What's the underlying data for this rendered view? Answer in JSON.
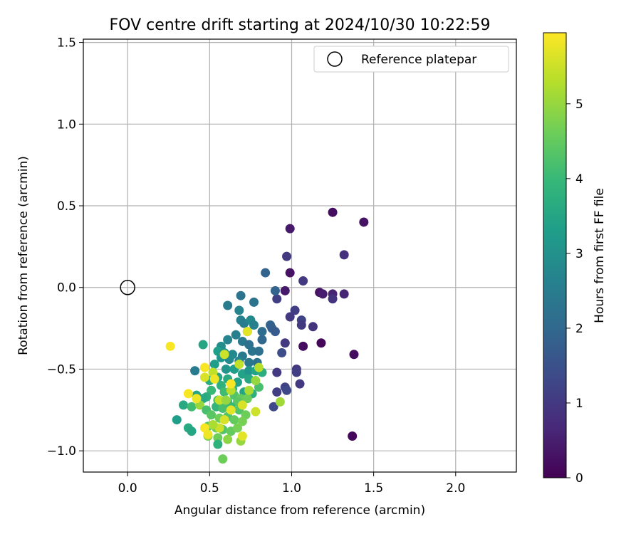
{
  "chart_data": {
    "type": "scatter",
    "title": "FOV centre drift starting at 2024/10/30 10:22:59",
    "xlabel": "Angular distance from reference (arcmin)",
    "ylabel": "Rotation from reference (arcmin)",
    "xlim": [
      -0.27,
      2.37
    ],
    "ylim": [
      -1.13,
      1.52
    ],
    "xticks": [
      0.0,
      0.5,
      1.0,
      1.5,
      2.0
    ],
    "xtick_labels": [
      "0.0",
      "0.5",
      "1.0",
      "1.5",
      "2.0"
    ],
    "yticks": [
      -1.0,
      -0.5,
      0.0,
      0.5,
      1.0,
      1.5
    ],
    "ytick_labels": [
      "−1.0",
      "−0.5",
      "0.0",
      "0.5",
      "1.0",
      "1.5"
    ],
    "grid": true,
    "legend": {
      "placement": "top-right",
      "entries": [
        "Reference platepar"
      ]
    },
    "reference_point": {
      "name": "Reference platepar",
      "x": 0.0,
      "y": 0.0
    },
    "colorbar": {
      "label": "Hours from first FF file",
      "range": [
        0,
        5.95
      ],
      "ticks": [
        0,
        1,
        2,
        3,
        4,
        5
      ],
      "tick_labels": [
        "0",
        "1",
        "2",
        "3",
        "4",
        "5"
      ],
      "colormap": "viridis"
    },
    "series": [
      {
        "points": [
          [
            1.25,
            0.46,
            0.2
          ],
          [
            1.44,
            0.4,
            0.3
          ],
          [
            0.99,
            0.36,
            0.4
          ],
          [
            1.32,
            0.2,
            0.8
          ],
          [
            0.97,
            0.19,
            1.0
          ],
          [
            0.99,
            0.09,
            0.3
          ],
          [
            1.07,
            0.04,
            1.0
          ],
          [
            0.96,
            -0.02,
            0.4
          ],
          [
            1.17,
            -0.03,
            0.3
          ],
          [
            1.19,
            -0.04,
            0.5
          ],
          [
            1.25,
            -0.04,
            0.6
          ],
          [
            1.32,
            -0.04,
            0.6
          ],
          [
            1.25,
            -0.07,
            0.9
          ],
          [
            0.91,
            -0.07,
            1.1
          ],
          [
            1.02,
            -0.14,
            1.1
          ],
          [
            0.99,
            -0.18,
            1.0
          ],
          [
            1.06,
            -0.2,
            1.2
          ],
          [
            1.06,
            -0.23,
            1.0
          ],
          [
            1.13,
            -0.24,
            0.9
          ],
          [
            1.18,
            -0.34,
            0.1
          ],
          [
            1.07,
            -0.36,
            0.2
          ],
          [
            1.38,
            -0.41,
            0.2
          ],
          [
            0.96,
            -0.34,
            1.0
          ],
          [
            0.94,
            -0.4,
            1.4
          ],
          [
            1.03,
            -0.5,
            1.0
          ],
          [
            1.03,
            -0.52,
            1.1
          ],
          [
            0.91,
            -0.52,
            1.0
          ],
          [
            1.05,
            -0.59,
            1.0
          ],
          [
            0.96,
            -0.61,
            1.2
          ],
          [
            0.97,
            -0.63,
            1.3
          ],
          [
            0.91,
            -0.64,
            1.1
          ],
          [
            0.89,
            -0.73,
            1.3
          ],
          [
            1.37,
            -0.91,
            0.1
          ],
          [
            0.9,
            -0.02,
            1.9
          ],
          [
            0.84,
            0.09,
            1.9
          ],
          [
            0.77,
            -0.09,
            2.3
          ],
          [
            0.69,
            -0.05,
            2.3
          ],
          [
            0.61,
            -0.11,
            2.5
          ],
          [
            0.68,
            -0.14,
            2.7
          ],
          [
            0.69,
            -0.2,
            2.6
          ],
          [
            0.71,
            -0.22,
            2.5
          ],
          [
            0.75,
            -0.2,
            2.8
          ],
          [
            0.77,
            -0.23,
            2.6
          ],
          [
            0.87,
            -0.23,
            1.9
          ],
          [
            0.88,
            -0.25,
            1.8
          ],
          [
            0.9,
            -0.27,
            1.7
          ],
          [
            0.82,
            -0.27,
            2.1
          ],
          [
            0.73,
            -0.27,
            2.4
          ],
          [
            0.66,
            -0.29,
            2.6
          ],
          [
            0.61,
            -0.32,
            2.7
          ],
          [
            0.7,
            -0.33,
            2.4
          ],
          [
            0.74,
            -0.35,
            2.2
          ],
          [
            0.82,
            -0.32,
            2.0
          ],
          [
            0.57,
            -0.36,
            2.9
          ],
          [
            0.55,
            -0.39,
            3.3
          ],
          [
            0.59,
            -0.4,
            3.0
          ],
          [
            0.64,
            -0.41,
            2.8
          ],
          [
            0.7,
            -0.42,
            2.4
          ],
          [
            0.76,
            -0.39,
            2.3
          ],
          [
            0.8,
            -0.39,
            2.2
          ],
          [
            0.79,
            -0.46,
            2.2
          ],
          [
            0.74,
            -0.46,
            2.4
          ],
          [
            0.68,
            -0.45,
            2.7
          ],
          [
            0.62,
            -0.44,
            2.8
          ],
          [
            0.57,
            -0.43,
            3.1
          ],
          [
            0.46,
            -0.35,
            3.5
          ],
          [
            0.41,
            -0.51,
            2.5
          ],
          [
            0.53,
            -0.47,
            3.3
          ],
          [
            0.6,
            -0.5,
            3.1
          ],
          [
            0.65,
            -0.5,
            3.3
          ],
          [
            0.7,
            -0.53,
            3.4
          ],
          [
            0.74,
            -0.51,
            3.1
          ],
          [
            0.78,
            -0.51,
            3.4
          ],
          [
            0.82,
            -0.52,
            3.7
          ],
          [
            0.55,
            -0.55,
            3.5
          ],
          [
            0.61,
            -0.56,
            3.6
          ],
          [
            0.67,
            -0.58,
            3.4
          ],
          [
            0.74,
            -0.56,
            3.5
          ],
          [
            0.5,
            -0.57,
            3.7
          ],
          [
            0.57,
            -0.6,
            3.8
          ],
          [
            0.64,
            -0.62,
            3.9
          ],
          [
            0.71,
            -0.64,
            3.5
          ],
          [
            0.76,
            -0.65,
            3.8
          ],
          [
            0.8,
            -0.61,
            4.2
          ],
          [
            0.51,
            -0.63,
            4.0
          ],
          [
            0.59,
            -0.64,
            4.1
          ],
          [
            0.65,
            -0.66,
            4.3
          ],
          [
            0.69,
            -0.68,
            4.5
          ],
          [
            0.48,
            -0.67,
            3.7
          ],
          [
            0.55,
            -0.69,
            4.3
          ],
          [
            0.61,
            -0.7,
            4.1
          ],
          [
            0.67,
            -0.7,
            4.4
          ],
          [
            0.73,
            -0.68,
            4.6
          ],
          [
            0.42,
            -0.66,
            3.5
          ],
          [
            0.46,
            -0.68,
            3.6
          ],
          [
            0.34,
            -0.72,
            3.6
          ],
          [
            0.39,
            -0.73,
            4.1
          ],
          [
            0.44,
            -0.72,
            5.0
          ],
          [
            0.48,
            -0.75,
            4.2
          ],
          [
            0.54,
            -0.73,
            3.9
          ],
          [
            0.58,
            -0.74,
            4.2
          ],
          [
            0.63,
            -0.73,
            4.0
          ],
          [
            0.68,
            -0.75,
            4.3
          ],
          [
            0.72,
            -0.78,
            4.6
          ],
          [
            0.51,
            -0.78,
            4.4
          ],
          [
            0.56,
            -0.8,
            4.6
          ],
          [
            0.61,
            -0.79,
            4.3
          ],
          [
            0.65,
            -0.81,
            4.5
          ],
          [
            0.7,
            -0.82,
            4.7
          ],
          [
            0.3,
            -0.81,
            3.3
          ],
          [
            0.37,
            -0.86,
            3.6
          ],
          [
            0.39,
            -0.88,
            3.5
          ],
          [
            0.49,
            -0.85,
            4.4
          ],
          [
            0.54,
            -0.86,
            4.6
          ],
          [
            0.58,
            -0.87,
            4.3
          ],
          [
            0.63,
            -0.88,
            4.5
          ],
          [
            0.67,
            -0.86,
            4.7
          ],
          [
            0.49,
            -0.91,
            4.8
          ],
          [
            0.55,
            -0.92,
            4.6
          ],
          [
            0.61,
            -0.93,
            4.9
          ],
          [
            0.69,
            -0.94,
            5.0
          ],
          [
            0.55,
            -0.96,
            3.8
          ],
          [
            0.58,
            -1.05,
            4.6
          ],
          [
            0.93,
            -0.7,
            5.1
          ],
          [
            0.78,
            -0.57,
            5.0
          ],
          [
            0.8,
            -0.49,
            5.3
          ],
          [
            0.74,
            -0.63,
            5.2
          ],
          [
            0.63,
            -0.63,
            5.3
          ],
          [
            0.68,
            -0.47,
            5.4
          ],
          [
            0.59,
            -0.41,
            5.5
          ],
          [
            0.52,
            -0.52,
            5.4
          ],
          [
            0.47,
            -0.55,
            5.6
          ],
          [
            0.73,
            -0.27,
            5.7
          ],
          [
            0.26,
            -0.36,
            5.9
          ],
          [
            0.37,
            -0.65,
            5.9
          ],
          [
            0.42,
            -0.68,
            5.8
          ],
          [
            0.47,
            -0.49,
            5.9
          ],
          [
            0.53,
            -0.56,
            5.8
          ],
          [
            0.63,
            -0.59,
            5.9
          ],
          [
            0.7,
            -0.72,
            5.6
          ],
          [
            0.78,
            -0.76,
            5.5
          ],
          [
            0.63,
            -0.75,
            5.7
          ],
          [
            0.59,
            -0.81,
            5.6
          ],
          [
            0.56,
            -0.86,
            5.5
          ],
          [
            0.52,
            -0.84,
            5.2
          ],
          [
            0.47,
            -0.86,
            5.9
          ],
          [
            0.49,
            -0.9,
            5.8
          ],
          [
            0.7,
            -0.91,
            5.7
          ],
          [
            0.56,
            -0.69,
            5.4
          ],
          [
            0.6,
            -0.69,
            5.0
          ]
        ]
      }
    ],
    "colors": {
      "reference_marker": "#000000",
      "grid": "#b0b0b0",
      "axes": "#000000",
      "viridis_stops": [
        "#440154",
        "#482878",
        "#3e4989",
        "#31688e",
        "#26828e",
        "#1f9e89",
        "#35b779",
        "#6ece58",
        "#b5de2b",
        "#fde725"
      ]
    }
  }
}
